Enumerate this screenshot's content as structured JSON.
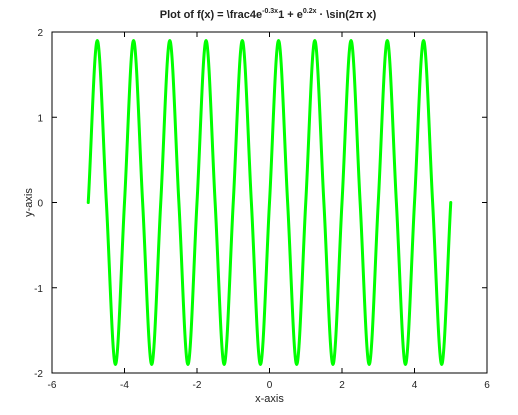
{
  "chart_data": {
    "type": "line",
    "title": {
      "prefix": "Plot of f(x) = \\frac4e",
      "sup1": "-0.3x",
      "middle": "1 + e",
      "sup2": "0.2x",
      "suffix": " · \\sin(2π x)"
    },
    "xlabel": "x-axis",
    "ylabel": "y-axis",
    "xlim": [
      -6,
      6
    ],
    "ylim": [
      -2,
      2
    ],
    "xticks": [
      -6,
      -4,
      -2,
      0,
      2,
      4,
      6
    ],
    "yticks": [
      -2,
      -1,
      0,
      1,
      2
    ],
    "x_tick_labels": [
      "-6",
      "-4",
      "-2",
      "0",
      "2",
      "4",
      "6"
    ],
    "y_tick_labels": [
      "-2",
      "-1",
      "0",
      "1",
      "2"
    ],
    "grid": false,
    "series": [
      {
        "color": "#00ff00",
        "x": [
          -5.0,
          -4.75,
          -4.5,
          -4.25,
          -4.0,
          -3.75,
          -3.5,
          -3.25,
          -3.0,
          -2.75,
          -2.5,
          -2.25,
          -2.0,
          -1.75,
          -1.5,
          -1.25,
          -1.0,
          -0.75,
          -0.5,
          -0.25,
          0.0,
          0.25,
          0.5,
          0.75,
          1.0,
          1.25,
          1.5,
          1.75,
          2.0,
          2.25,
          2.5,
          2.75,
          3.0,
          3.25,
          3.5,
          3.75,
          4.0,
          4.25,
          4.5,
          4.75,
          5.0
        ],
        "y": [
          0.0,
          1.9,
          0.0,
          -1.9,
          0.0,
          1.9,
          0.0,
          -1.9,
          0.0,
          1.9,
          0.0,
          -1.9,
          0.0,
          1.9,
          0.0,
          -1.9,
          0.0,
          1.9,
          0.0,
          -1.9,
          0.0,
          1.9,
          0.0,
          -1.9,
          0.0,
          1.9,
          0.0,
          -1.9,
          0.0,
          1.9,
          0.0,
          -1.9,
          0.0,
          1.9,
          0.0,
          -1.9,
          0.0,
          1.9,
          0.0,
          -1.9,
          0.0
        ]
      }
    ]
  }
}
